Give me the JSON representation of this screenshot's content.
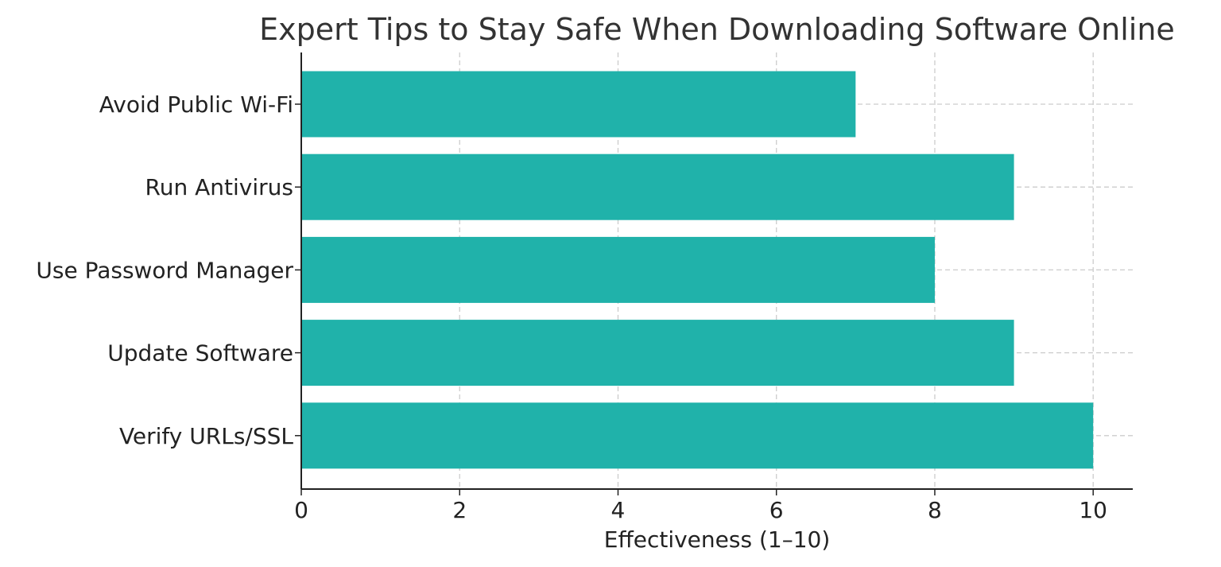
{
  "chart_data": {
    "type": "bar",
    "orientation": "horizontal",
    "title": "Expert Tips to Stay Safe When Downloading Software Online",
    "xlabel": "Effectiveness (1–10)",
    "ylabel": "",
    "categories": [
      "Avoid Public Wi-Fi",
      "Run Antivirus",
      "Use Password Manager",
      "Update Software",
      "Verify URLs/SSL"
    ],
    "values": [
      7,
      9,
      8,
      9,
      10
    ],
    "xlim": [
      0,
      10.5
    ],
    "xticks": [
      0,
      2,
      4,
      6,
      8,
      10
    ],
    "grid": true,
    "bar_color": "#20b2aa"
  }
}
